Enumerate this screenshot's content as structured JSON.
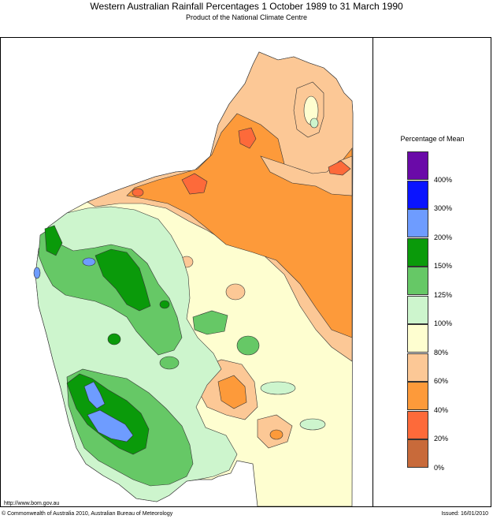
{
  "header": {
    "title": "Western Australian Rainfall Percentages 1 October 1989 to 31 March 1990",
    "subtitle": "Product of the National Climate Centre"
  },
  "legend": {
    "title": "Percentage of Mean",
    "bands": [
      {
        "color": "#6a0aa8",
        "label": "400%"
      },
      {
        "color": "#0a14ff",
        "label": "300%"
      },
      {
        "color": "#6e9cff",
        "label": "200%"
      },
      {
        "color": "#0a9a0a",
        "label": "150%"
      },
      {
        "color": "#66c866",
        "label": "125%"
      },
      {
        "color": "#cdf5cd",
        "label": "100%"
      },
      {
        "color": "#fefed0",
        "label": "80%"
      },
      {
        "color": "#fcc896",
        "label": "60%"
      },
      {
        "color": "#fd9a3a",
        "label": "40%"
      },
      {
        "color": "#fd6a3a",
        "label": "20%"
      },
      {
        "color": "#c86a3a",
        "label": "0%"
      }
    ]
  },
  "footer": {
    "url": "http://www.bom.gov.au",
    "copyright": "© Commonwealth of Australia 2010, Australian Bureau of Meteorology",
    "issued": "Issued: 16/01/2010"
  }
}
